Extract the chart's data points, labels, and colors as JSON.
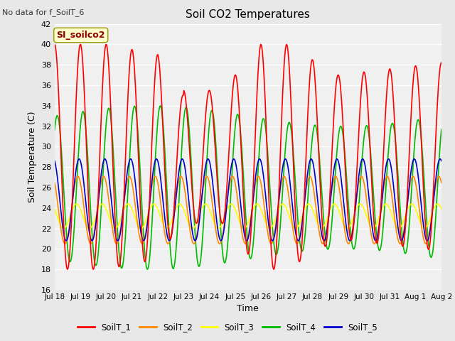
{
  "title": "Soil CO2 Temperatures",
  "xlabel": "Time",
  "ylabel": "Soil Temperature (C)",
  "annotation": "No data for f_SoilT_6",
  "legend_label": "SI_soilco2",
  "ylim": [
    16,
    42
  ],
  "yticks": [
    16,
    18,
    20,
    22,
    24,
    26,
    28,
    30,
    32,
    34,
    36,
    38,
    40,
    42
  ],
  "x_tick_labels": [
    "Jul 18",
    "Jul 19",
    "Jul 20",
    "Jul 21",
    "Jul 22",
    "Jul 23",
    "Jul 24",
    "Jul 25",
    "Jul 26",
    "Jul 27",
    "Jul 28",
    "Jul 29",
    "Jul 30",
    "Jul 31",
    "Aug 1",
    "Aug 2"
  ],
  "colors": {
    "SoilT_1": "#ff0000",
    "SoilT_2": "#ff8800",
    "SoilT_3": "#ffff00",
    "SoilT_4": "#00bb00",
    "SoilT_5": "#0000cc"
  },
  "legend_names": [
    "SoilT_1",
    "SoilT_2",
    "SoilT_3",
    "SoilT_4",
    "SoilT_5"
  ],
  "bg_color": "#e8e8e8",
  "plot_bg_color": "#f0f0f0",
  "n_points": 800
}
